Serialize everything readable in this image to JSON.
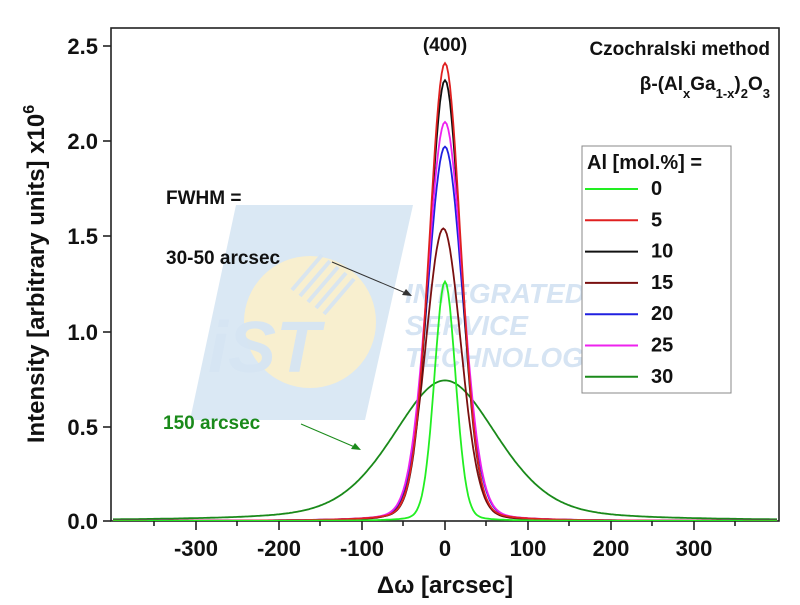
{
  "chart_data": {
    "type": "line",
    "title": "Czochralski method",
    "subtitle": "β-(AlxGa1-x)2O3",
    "reflection": "(400)",
    "xlabel": "Δω [arcsec]",
    "ylabel": "Intensity [arbitrary units] x10^6",
    "xlim": [
      -400,
      400
    ],
    "ylim": [
      0,
      2.6
    ],
    "xticks": [
      -300,
      -200,
      -100,
      0,
      100,
      200,
      300
    ],
    "xtick_labels": [
      "-300",
      "-200",
      "-100",
      "0",
      "100",
      "200",
      "300"
    ],
    "yticks": [
      0.0,
      0.5,
      1.0,
      1.5,
      2.0,
      2.5
    ],
    "ytick_labels": [
      "0.0",
      "0.5",
      "1.0",
      "1.5",
      "2.0",
      "2.5"
    ],
    "grid": false,
    "legend_title": "Al [mol.%] =",
    "legend_position": "upper right",
    "series": [
      {
        "name": "0",
        "color": "#22ee22",
        "peak_x": 0,
        "peak_y": 1.26,
        "fwhm_arcsec": 30
      },
      {
        "name": "5",
        "color": "#e02020",
        "peak_x": 0,
        "peak_y": 2.41,
        "fwhm_arcsec": 45
      },
      {
        "name": "10",
        "color": "#111111",
        "peak_x": 0,
        "peak_y": 2.32,
        "fwhm_arcsec": 45
      },
      {
        "name": "15",
        "color": "#7a1010",
        "peak_x": -2,
        "peak_y": 1.54,
        "fwhm_arcsec": 50
      },
      {
        "name": "20",
        "color": "#2020e0",
        "peak_x": 0,
        "peak_y": 1.97,
        "fwhm_arcsec": 50
      },
      {
        "name": "25",
        "color": "#ee22ee",
        "peak_x": 0,
        "peak_y": 2.1,
        "fwhm_arcsec": 50
      },
      {
        "name": "30",
        "color": "#1a8a1a",
        "peak_x": 0,
        "peak_y": 0.74,
        "fwhm_arcsec": 150
      }
    ],
    "annotations": [
      {
        "text": "FWHM =",
        "color": "#111111"
      },
      {
        "text": "30-50 arcsec",
        "color": "#111111"
      },
      {
        "text": "150 arcsec",
        "color": "#1a8a1a"
      }
    ]
  },
  "watermark": {
    "logo": "iST",
    "lines": [
      "INTEGRATED",
      "SERVICE",
      "TECHNOLOGY"
    ]
  }
}
